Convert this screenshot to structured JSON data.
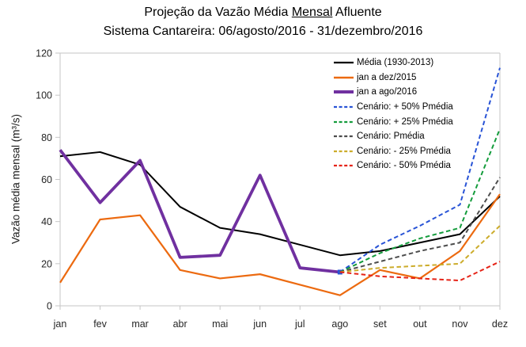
{
  "title": {
    "line1_prefix": "Projeção da Vazão Média ",
    "line1_underline": "Mensal",
    "line1_suffix": " Afluente",
    "line2": "Sistema Cantareira: 06/agosto/2016 - 31/dezembro/2016"
  },
  "chart_data": {
    "type": "line",
    "title": "Projeção da Vazão Média Mensal Afluente",
    "subtitle": "Sistema Cantareira: 06/agosto/2016 - 31/dezembro/2016",
    "xlabel": "",
    "ylabel": "Vazão média mensal (m³/s)",
    "ylim": [
      0,
      120
    ],
    "yticks": [
      0,
      20,
      40,
      60,
      80,
      100,
      120
    ],
    "grid": false,
    "legend_position": "top-right-inside",
    "axis_color": "#c6c6c6",
    "tick_label_color": "#262626",
    "categories": [
      "jan",
      "fev",
      "mar",
      "abr",
      "mai",
      "jun",
      "jul",
      "ago",
      "set",
      "out",
      "nov",
      "dez"
    ],
    "series": [
      {
        "name": "Média (1930-2013)",
        "color": "#000000",
        "style": "solid",
        "width": 2,
        "start_index": 0,
        "values": [
          71,
          73,
          67,
          47,
          37,
          34,
          29,
          24,
          26,
          30,
          34,
          52
        ]
      },
      {
        "name": "jan a dez/2015",
        "color": "#EC6A10",
        "style": "solid",
        "width": 2.2,
        "start_index": 0,
        "values": [
          11,
          41,
          43,
          17,
          13,
          15,
          10,
          5,
          17,
          13,
          26,
          53
        ]
      },
      {
        "name": "jan a ago/2016",
        "color": "#7030A0",
        "style": "solid",
        "width": 3.8,
        "start_index": 0,
        "values": [
          74,
          49,
          69,
          23,
          24,
          62,
          18,
          16
        ]
      },
      {
        "name": "Cenário: + 50% Pmédia",
        "color": "#2853D6",
        "style": "dashed",
        "width": 2,
        "start_index": 7,
        "start_marker": true,
        "values": [
          16,
          29,
          38,
          48,
          113
        ]
      },
      {
        "name": "Cenário: + 25% Pmédia",
        "color": "#149C3C",
        "style": "dashed",
        "width": 2,
        "start_index": 7,
        "values": [
          16,
          25,
          32,
          37,
          84
        ]
      },
      {
        "name": "Cenário: Pmédia",
        "color": "#4D4D4D",
        "style": "dashed",
        "width": 2,
        "start_index": 7,
        "values": [
          16,
          21,
          26,
          30,
          61
        ]
      },
      {
        "name": "Cenário: - 25% Pmédia",
        "color": "#CCAC2B",
        "style": "dashed",
        "width": 2,
        "start_index": 7,
        "values": [
          16,
          18,
          19,
          20,
          38
        ]
      },
      {
        "name": "Cenário: - 50% Pmédia",
        "color": "#E52317",
        "style": "dashed",
        "width": 2,
        "start_index": 7,
        "values": [
          16,
          14,
          13,
          12,
          21
        ]
      }
    ]
  }
}
